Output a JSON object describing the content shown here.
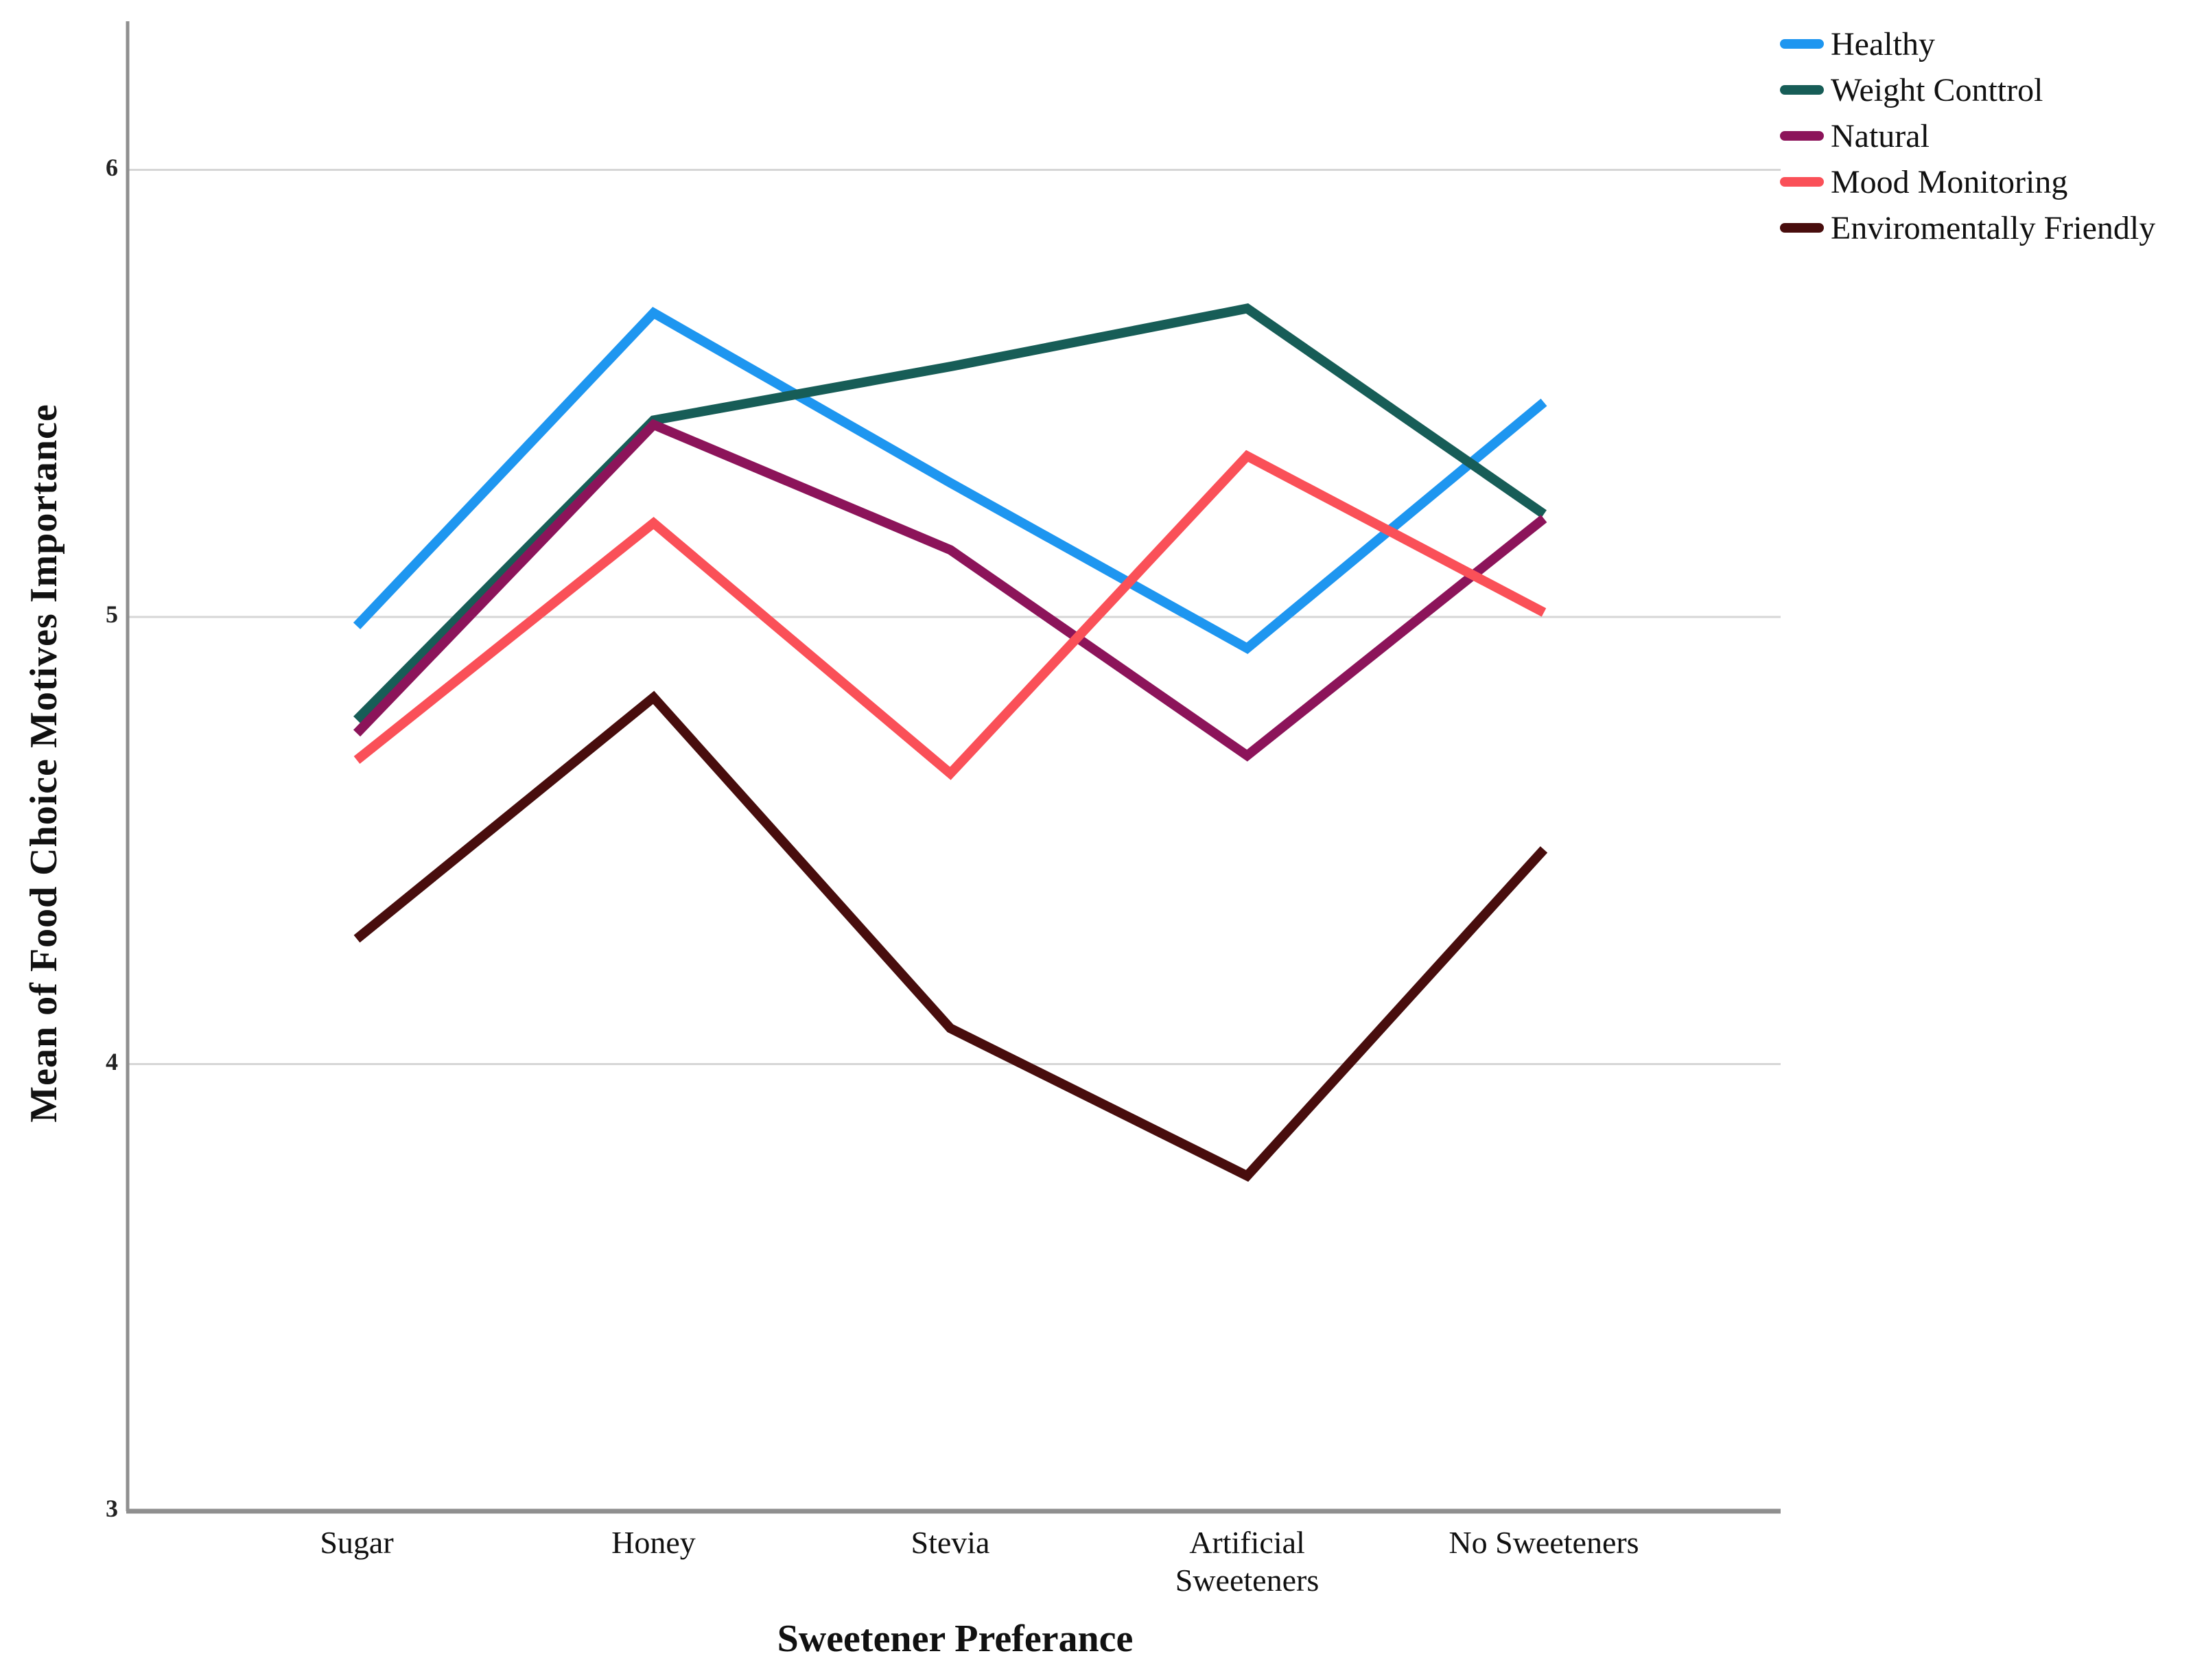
{
  "chart_data": {
    "type": "line",
    "title": "",
    "xlabel": "Sweetener Preferance",
    "ylabel": "Mean of Food Choice Motives Importance",
    "categories": [
      "Sugar",
      "Honey",
      "Stevia",
      "Artificial Sweeteners",
      "No Sweeteners"
    ],
    "category_lines": [
      [
        "Sugar"
      ],
      [
        "Honey"
      ],
      [
        "Stevia"
      ],
      [
        "Artificial",
        "Sweeteners"
      ],
      [
        "No Sweeteners"
      ]
    ],
    "yticks": [
      3,
      4,
      5,
      6
    ],
    "ylim": [
      3,
      6.35
    ],
    "grid": "horizontal",
    "legend_position": "outside-top-right",
    "series": [
      {
        "name": "Healthy",
        "color": "#1E96F0",
        "values": [
          4.98,
          5.68,
          5.3,
          4.93,
          5.48
        ]
      },
      {
        "name": "Weight Conttrol",
        "color": "#175D57",
        "values": [
          4.77,
          5.44,
          5.56,
          5.69,
          5.23
        ]
      },
      {
        "name": "Natural",
        "color": "#8C145A",
        "values": [
          4.74,
          5.43,
          5.15,
          4.69,
          5.22
        ]
      },
      {
        "name": "Mood Monitoring",
        "color": "#FA5058",
        "values": [
          4.68,
          5.21,
          4.65,
          5.36,
          5.01
        ]
      },
      {
        "name": "Enviromentally Friendly",
        "color": "#480D0D",
        "values": [
          4.28,
          4.82,
          4.08,
          3.75,
          4.48
        ]
      }
    ]
  }
}
